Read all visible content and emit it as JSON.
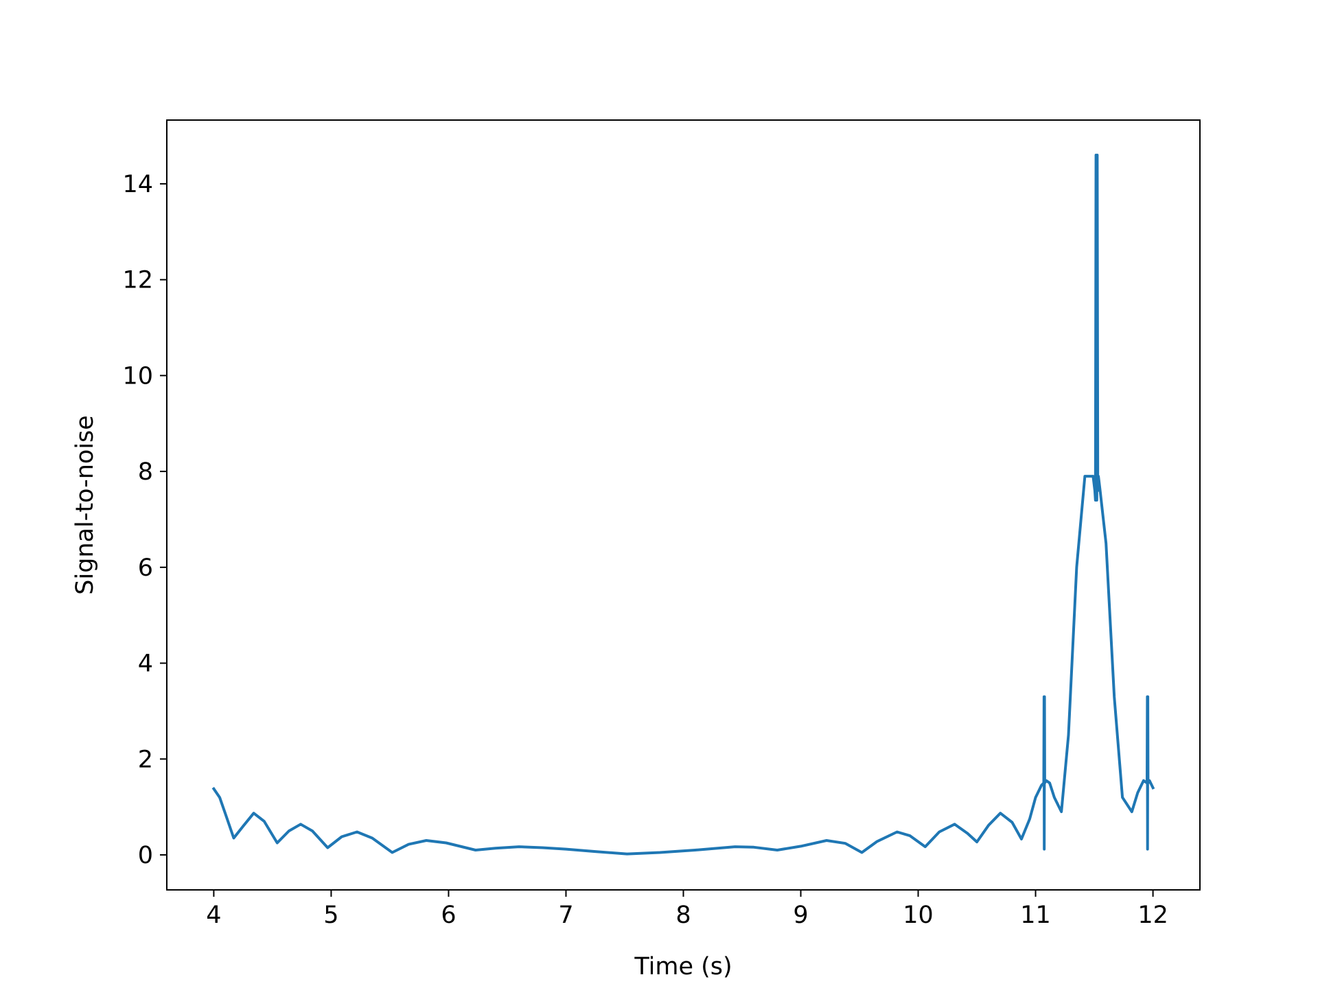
{
  "chart_data": {
    "type": "line",
    "title": "",
    "xlabel": "Time (s)",
    "ylabel": "Signal-to-noise",
    "xlim": [
      3.6,
      12.4
    ],
    "ylim": [
      -0.73,
      15.33
    ],
    "grid": false,
    "legend": "none",
    "x_ticks": [
      4,
      5,
      6,
      7,
      8,
      9,
      10,
      11,
      12
    ],
    "x_tick_labels": [
      "4",
      "5",
      "6",
      "7",
      "8",
      "9",
      "10",
      "11",
      "12"
    ],
    "y_ticks": [
      0,
      2,
      4,
      6,
      8,
      10,
      12,
      14
    ],
    "y_tick_labels": [
      "0",
      "2",
      "4",
      "6",
      "8",
      "10",
      "12",
      "14"
    ],
    "series": [
      {
        "color": "#1f77b4",
        "x": [
          4.0,
          4.05,
          4.1,
          4.17,
          4.25,
          4.34,
          4.43,
          4.54,
          4.64,
          4.74,
          4.84,
          4.97,
          5.09,
          5.22,
          5.35,
          5.52,
          5.66,
          5.81,
          5.98,
          6.23,
          6.4,
          6.6,
          6.8,
          7.0,
          7.25,
          7.52,
          7.8,
          8.1,
          8.44,
          8.6,
          8.8,
          9.0,
          9.22,
          9.38,
          9.52,
          9.65,
          9.82,
          9.93,
          10.06,
          10.18,
          10.31,
          10.42,
          10.5,
          10.6,
          10.7,
          10.8,
          10.88,
          10.95,
          11.0,
          11.05,
          11.07,
          11.072,
          11.074,
          11.076,
          11.078,
          11.09,
          11.12,
          11.16,
          11.22,
          11.28,
          11.35,
          11.42,
          11.49,
          11.505,
          11.51,
          11.515,
          11.518,
          11.52,
          11.522,
          11.525,
          11.53,
          11.535,
          11.55,
          11.6,
          11.67,
          11.74,
          11.82,
          11.87,
          11.92,
          11.95,
          11.952,
          11.954,
          11.956,
          11.958,
          11.97,
          12.0
        ],
        "y": [
          1.38,
          1.2,
          0.85,
          0.35,
          0.6,
          0.87,
          0.7,
          0.25,
          0.5,
          0.64,
          0.5,
          0.15,
          0.38,
          0.48,
          0.35,
          0.05,
          0.22,
          0.3,
          0.25,
          0.1,
          0.14,
          0.17,
          0.15,
          0.12,
          0.07,
          0.02,
          0.05,
          0.1,
          0.17,
          0.16,
          0.1,
          0.18,
          0.3,
          0.24,
          0.05,
          0.28,
          0.48,
          0.4,
          0.17,
          0.48,
          0.64,
          0.45,
          0.27,
          0.62,
          0.87,
          0.68,
          0.33,
          0.75,
          1.2,
          1.45,
          1.5,
          3.3,
          0.12,
          3.3,
          1.5,
          1.55,
          1.5,
          1.2,
          0.9,
          2.5,
          6.0,
          7.9,
          7.9,
          7.6,
          7.4,
          14.6,
          7.4,
          7.6,
          7.4,
          14.6,
          7.6,
          7.9,
          7.6,
          6.5,
          3.3,
          1.2,
          0.9,
          1.3,
          1.55,
          1.5,
          3.3,
          0.12,
          3.3,
          1.5,
          1.55,
          1.4
        ]
      }
    ]
  }
}
